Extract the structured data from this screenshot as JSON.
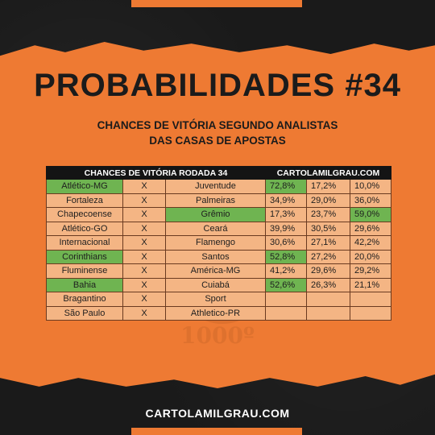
{
  "title": "PROBABILIDADES #34",
  "subtitle_line1": "CHANCES DE VITÓRIA SEGUNDO ANALISTAS",
  "subtitle_line2": "DAS CASAS DE APOSTAS",
  "table": {
    "header_left": "CHANCES DE VITÓRIA RODADA 34",
    "header_right": "CARTOLAMILGRAU.COM",
    "vs_label": "X",
    "rows": [
      {
        "home": "Atlético-MG",
        "away": "Juventude",
        "p_home": "72,8%",
        "p_draw": "17,2%",
        "p_away": "10,0%",
        "green": [
          "home",
          "p_home"
        ]
      },
      {
        "home": "Fortaleza",
        "away": "Palmeiras",
        "p_home": "34,9%",
        "p_draw": "29,0%",
        "p_away": "36,0%",
        "green": []
      },
      {
        "home": "Chapecoense",
        "away": "Grêmio",
        "p_home": "17,3%",
        "p_draw": "23,7%",
        "p_away": "59,0%",
        "green": [
          "away",
          "p_away"
        ]
      },
      {
        "home": "Atlético-GO",
        "away": "Ceará",
        "p_home": "39,9%",
        "p_draw": "30,5%",
        "p_away": "29,6%",
        "green": []
      },
      {
        "home": "Internacional",
        "away": "Flamengo",
        "p_home": "30,6%",
        "p_draw": "27,1%",
        "p_away": "42,2%",
        "green": []
      },
      {
        "home": "Corinthians",
        "away": "Santos",
        "p_home": "52,8%",
        "p_draw": "27,2%",
        "p_away": "20,0%",
        "green": [
          "home",
          "p_home"
        ]
      },
      {
        "home": "Fluminense",
        "away": "América-MG",
        "p_home": "41,2%",
        "p_draw": "29,6%",
        "p_away": "29,2%",
        "green": []
      },
      {
        "home": "Bahia",
        "away": "Cuiabá",
        "p_home": "52,6%",
        "p_draw": "26,3%",
        "p_away": "21,1%",
        "green": [
          "home",
          "p_home"
        ]
      },
      {
        "home": "Bragantino",
        "away": "Sport",
        "p_home": "",
        "p_draw": "",
        "p_away": "",
        "green": []
      },
      {
        "home": "São Paulo",
        "away": "Athletico-PR",
        "p_home": "",
        "p_draw": "",
        "p_away": "",
        "green": []
      }
    ]
  },
  "watermark_text": "1000º",
  "footer_site": "CARTOLAMILGRAU.COM",
  "colors": {
    "orange": "#ee7a33",
    "cell": "#f4b584",
    "green": "#6fb451",
    "dark": "#141414"
  }
}
